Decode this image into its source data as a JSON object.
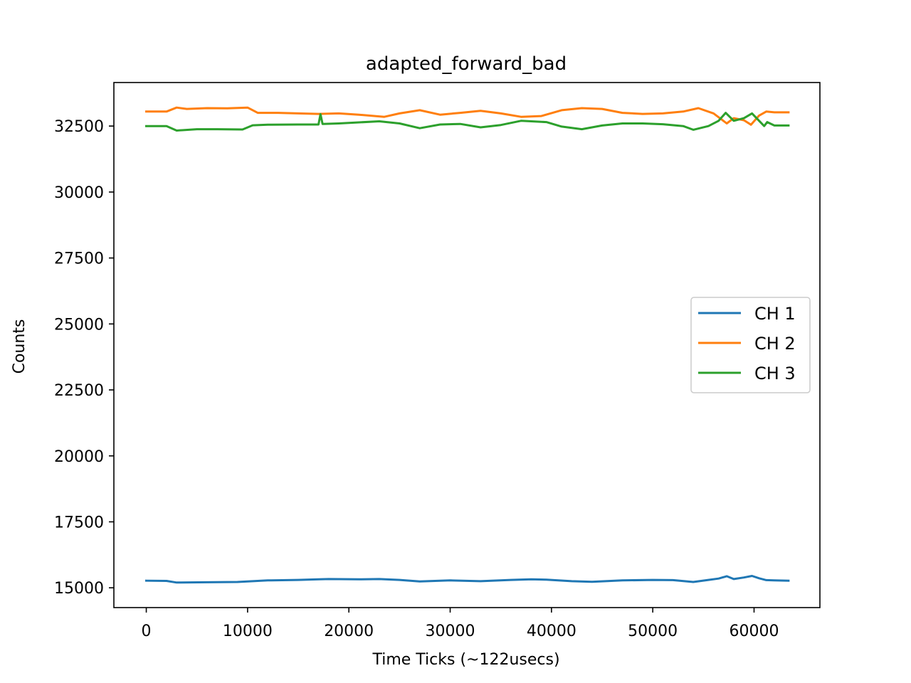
{
  "chart_data": {
    "type": "line",
    "title": "adapted_forward_bad",
    "xlabel": "Time Ticks (~122usecs)",
    "ylabel": "Counts",
    "xlim": [
      -3200,
      66500
    ],
    "ylim": [
      14250,
      34150
    ],
    "xticks": [
      0,
      10000,
      20000,
      30000,
      40000,
      50000,
      60000
    ],
    "yticks": [
      15000,
      17500,
      20000,
      22500,
      25000,
      27500,
      30000,
      32500
    ],
    "grid": false,
    "legend_position": "center-right",
    "series": [
      {
        "name": "CH 1",
        "color": "#1f77b4",
        "x": [
          0,
          2000,
          3000,
          6000,
          9000,
          10000,
          12000,
          15000,
          17000,
          18000,
          21000,
          23000,
          25000,
          27000,
          30000,
          33000,
          36000,
          38000,
          39500,
          42000,
          44000,
          47000,
          50000,
          52000,
          54000,
          55500,
          56500,
          57300,
          58000,
          59000,
          59800,
          60500,
          61200,
          62000,
          63400
        ],
        "y": [
          15270,
          15260,
          15200,
          15210,
          15220,
          15240,
          15280,
          15300,
          15320,
          15330,
          15320,
          15330,
          15300,
          15240,
          15280,
          15250,
          15300,
          15320,
          15310,
          15250,
          15230,
          15280,
          15300,
          15290,
          15220,
          15300,
          15350,
          15440,
          15330,
          15390,
          15450,
          15360,
          15290,
          15280,
          15270
        ]
      },
      {
        "name": "CH 2",
        "color": "#ff7f0e",
        "x": [
          0,
          2000,
          3000,
          4000,
          6000,
          8000,
          10000,
          11000,
          13000,
          15000,
          17000,
          19000,
          21000,
          23500,
          25000,
          27000,
          29000,
          31000,
          33000,
          35000,
          37000,
          39000,
          41000,
          43000,
          45000,
          47000,
          49000,
          51000,
          53000,
          54500,
          56000,
          56800,
          57300,
          58000,
          59000,
          59700,
          60500,
          61200,
          62000,
          63400
        ],
        "y": [
          33050,
          33050,
          33200,
          33150,
          33180,
          33170,
          33200,
          33000,
          33000,
          32980,
          32960,
          32980,
          32930,
          32850,
          32980,
          33100,
          32930,
          33000,
          33080,
          32980,
          32850,
          32880,
          33100,
          33180,
          33150,
          33000,
          32960,
          32980,
          33050,
          33180,
          32980,
          32750,
          32600,
          32800,
          32720,
          32550,
          32900,
          33050,
          33020,
          33020
        ]
      },
      {
        "name": "CH 3",
        "color": "#2ca02c",
        "x": [
          0,
          2000,
          3000,
          5000,
          7000,
          9500,
          10500,
          12000,
          15000,
          17000,
          17200,
          17400,
          19000,
          21000,
          23000,
          25000,
          27000,
          29000,
          31000,
          33000,
          35000,
          37000,
          39500,
          41000,
          43000,
          45000,
          47000,
          49000,
          51000,
          53000,
          54000,
          55500,
          56500,
          57200,
          58000,
          59000,
          59800,
          60500,
          61000,
          61300,
          62000,
          63400
        ],
        "y": [
          32500,
          32500,
          32330,
          32380,
          32380,
          32370,
          32530,
          32550,
          32560,
          32560,
          32950,
          32580,
          32600,
          32640,
          32680,
          32600,
          32420,
          32560,
          32580,
          32450,
          32540,
          32700,
          32650,
          32480,
          32380,
          32520,
          32600,
          32600,
          32570,
          32500,
          32360,
          32500,
          32700,
          33000,
          32700,
          32800,
          32980,
          32700,
          32500,
          32650,
          32520,
          32520
        ]
      }
    ]
  }
}
